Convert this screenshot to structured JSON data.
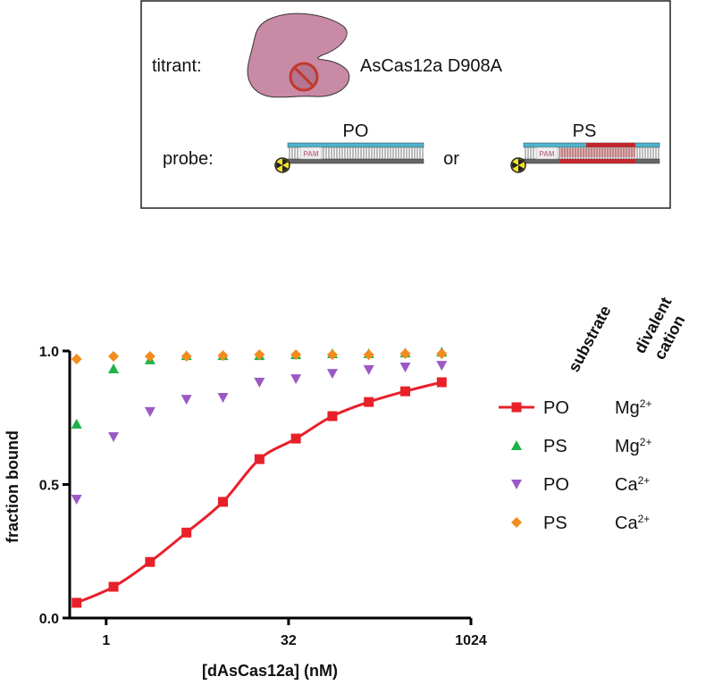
{
  "schematic": {
    "titrant_label": "titrant:",
    "protein": "AsCas12a D908A",
    "probe_label": "probe:",
    "probe_a": "PO",
    "or": "or",
    "probe_b": "PS",
    "pam": "PAM"
  },
  "chart_data": {
    "type": "scatter",
    "xlabel": "[dAsCas12a] (nM)",
    "ylabel": "fraction bound",
    "log_base": 2,
    "xlim": [
      0.5,
      1024
    ],
    "xticks": [
      1,
      32,
      1024
    ],
    "ylim": [
      0,
      1
    ],
    "yticks": [
      {
        "value": 0,
        "label": "0.0"
      },
      {
        "value": 0.5,
        "label": "0.5"
      },
      {
        "value": 1,
        "label": "1.0"
      }
    ],
    "legend_headers": [
      "substrate",
      "divalent",
      "cation"
    ],
    "x": [
      0.57,
      1.15,
      2.3,
      4.6,
      9.2,
      18.4,
      36.8,
      73.6,
      147,
      294,
      588
    ],
    "series": [
      {
        "name": "PO",
        "cation": "Mg",
        "cation_sup": "2+",
        "color": "#e8202a",
        "marker": "square",
        "fit_line": true,
        "values": [
          0.057,
          0.117,
          0.21,
          0.32,
          0.435,
          0.595,
          0.672,
          0.756,
          0.809,
          0.849,
          0.883
        ]
      },
      {
        "name": "PS",
        "cation": "Mg",
        "cation_sup": "2+",
        "color": "#1db24a",
        "marker": "triangle-up",
        "values": [
          0.726,
          0.933,
          0.967,
          0.983,
          0.983,
          0.983,
          0.986,
          0.99,
          0.99,
          0.993,
          0.996
        ]
      },
      {
        "name": "PO",
        "cation": "Ca",
        "cation_sup": "2+",
        "color": "#9b59c4",
        "marker": "triangle-down",
        "values": [
          0.445,
          0.679,
          0.773,
          0.819,
          0.826,
          0.883,
          0.896,
          0.916,
          0.93,
          0.94,
          0.946
        ]
      },
      {
        "name": "PS",
        "cation": "Ca",
        "cation_sup": "2+",
        "color": "#f28c1e",
        "marker": "diamond",
        "values": [
          0.97,
          0.98,
          0.98,
          0.98,
          0.983,
          0.986,
          0.986,
          0.986,
          0.986,
          0.99,
          0.99
        ]
      }
    ]
  }
}
